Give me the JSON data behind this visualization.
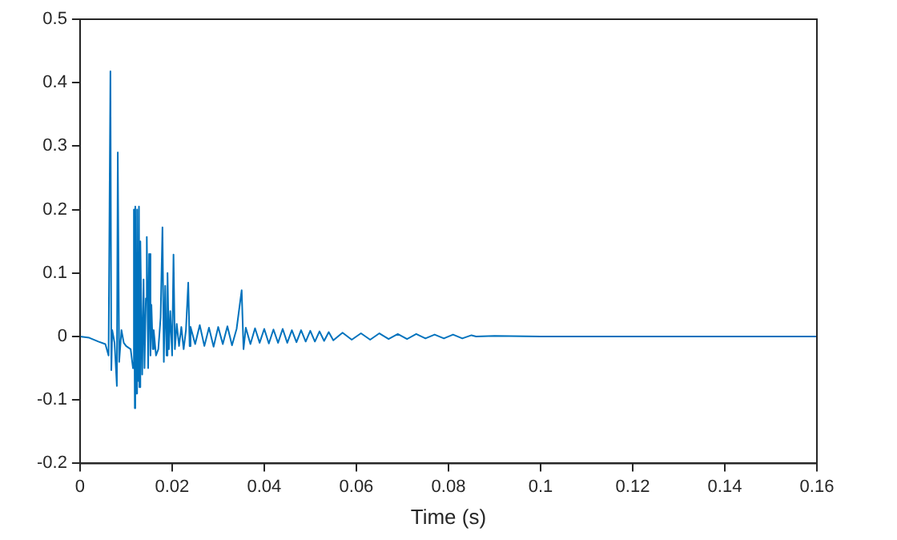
{
  "chart_data": {
    "type": "line",
    "xlabel": "Time (s)",
    "xlim": [
      0,
      0.16
    ],
    "xticks": [
      0,
      0.02,
      0.04,
      0.06,
      0.08,
      0.1,
      0.12,
      0.14,
      0.16
    ],
    "ylim": [
      -0.2,
      0.5
    ],
    "yticks": [
      -0.2,
      -0.1,
      0,
      0.1,
      0.2,
      0.3,
      0.4,
      0.5
    ],
    "grid": false,
    "legend": false,
    "marker": "none",
    "line_style": "solid",
    "series": [
      {
        "color": "#0072bd",
        "x": [
          0,
          0.002,
          0.004,
          0.0055,
          0.0062,
          0.0066,
          0.0068,
          0.007,
          0.0075,
          0.008,
          0.0082,
          0.0085,
          0.009,
          0.0095,
          0.01,
          0.011,
          0.0115,
          0.0117,
          0.0119,
          0.012,
          0.0122,
          0.0124,
          0.0126,
          0.0128,
          0.0129,
          0.0131,
          0.0135,
          0.0138,
          0.014,
          0.0143,
          0.0145,
          0.0148,
          0.015,
          0.0153,
          0.0155,
          0.0158,
          0.016,
          0.0165,
          0.017,
          0.0175,
          0.0179,
          0.0182,
          0.0185,
          0.0188,
          0.019,
          0.0193,
          0.0196,
          0.02,
          0.0203,
          0.0206,
          0.021,
          0.0215,
          0.022,
          0.0225,
          0.023,
          0.0235,
          0.0238,
          0.024,
          0.025,
          0.026,
          0.027,
          0.028,
          0.029,
          0.03,
          0.031,
          0.032,
          0.033,
          0.034,
          0.0351,
          0.0355,
          0.036,
          0.037,
          0.038,
          0.039,
          0.04,
          0.041,
          0.042,
          0.043,
          0.044,
          0.045,
          0.046,
          0.047,
          0.048,
          0.049,
          0.05,
          0.051,
          0.052,
          0.053,
          0.054,
          0.055,
          0.057,
          0.059,
          0.061,
          0.063,
          0.065,
          0.067,
          0.069,
          0.071,
          0.073,
          0.075,
          0.077,
          0.079,
          0.081,
          0.083,
          0.085,
          0.086,
          0.09,
          0.1,
          0.11,
          0.12,
          0.13,
          0.14,
          0.15,
          0.16
        ],
        "values": [
          0,
          -0.002,
          -0.008,
          -0.012,
          -0.03,
          0.418,
          -0.053,
          0.01,
          -0.01,
          -0.078,
          0.29,
          -0.04,
          0.01,
          -0.01,
          -0.015,
          -0.02,
          -0.05,
          0.2,
          -0.113,
          0.205,
          -0.09,
          0.2,
          -0.07,
          0.205,
          -0.08,
          0.15,
          -0.06,
          0.09,
          -0.05,
          0.06,
          0.157,
          -0.05,
          0.13,
          -0.03,
          0.05,
          -0.02,
          0.01,
          -0.03,
          -0.02,
          0.03,
          0.172,
          -0.04,
          0.08,
          -0.03,
          0.1,
          -0.02,
          0.04,
          -0.03,
          0.129,
          -0.02,
          0.02,
          -0.015,
          0.015,
          -0.02,
          0.01,
          0.085,
          -0.015,
          0.015,
          -0.012,
          0.018,
          -0.015,
          0.014,
          -0.016,
          0.015,
          -0.012,
          0.016,
          -0.014,
          0.012,
          0.073,
          -0.02,
          0.014,
          -0.012,
          0.013,
          -0.01,
          0.012,
          -0.011,
          0.011,
          -0.01,
          0.012,
          -0.01,
          0.01,
          -0.009,
          0.01,
          -0.008,
          0.009,
          -0.008,
          0.008,
          -0.007,
          0.007,
          -0.006,
          0.006,
          -0.005,
          0.005,
          -0.005,
          0.005,
          -0.004,
          0.004,
          -0.004,
          0.004,
          -0.003,
          0.003,
          -0.003,
          0.003,
          -0.003,
          0.002,
          0,
          0.001,
          0,
          0,
          0,
          0,
          0,
          0,
          0
        ]
      }
    ]
  }
}
